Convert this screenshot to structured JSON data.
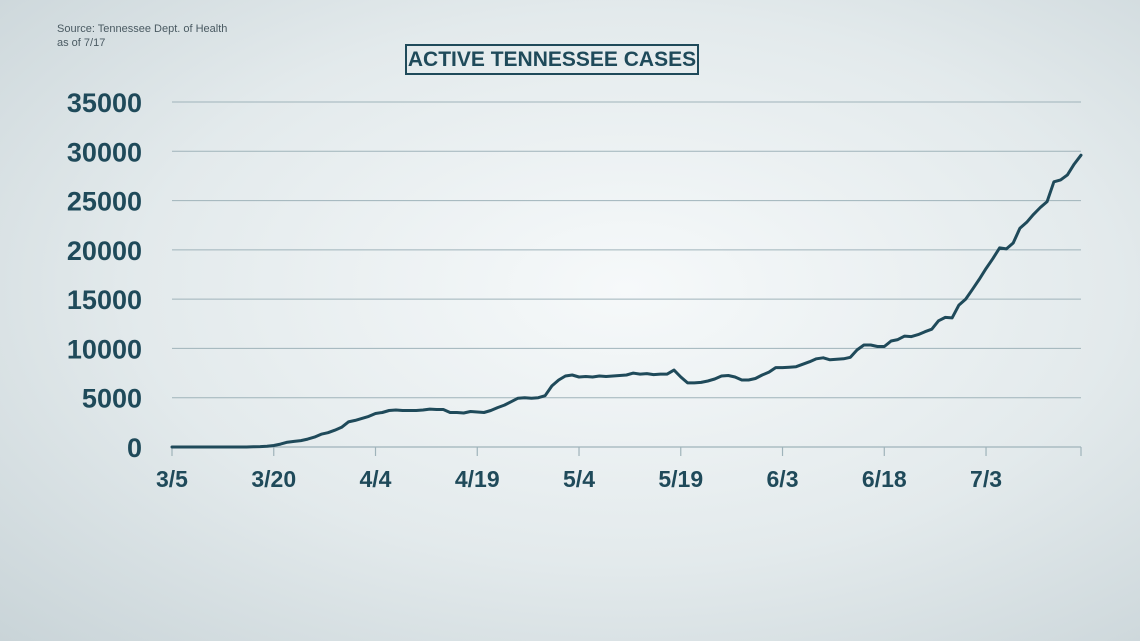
{
  "source": {
    "line1": "Source: Tennessee Dept. of Health",
    "line2": "as of 7/17"
  },
  "chart_data": {
    "type": "line",
    "title": "ACTIVE TENNESSEE CASES",
    "xlabel": "",
    "ylabel": "",
    "ylim": [
      0,
      35000
    ],
    "yticks": [
      0,
      5000,
      10000,
      15000,
      20000,
      25000,
      30000,
      35000
    ],
    "xtick_labels": [
      "3/5",
      "3/20",
      "4/4",
      "4/19",
      "5/4",
      "5/19",
      "6/3",
      "6/18",
      "7/3"
    ],
    "xtick_day_index": [
      0,
      15,
      30,
      45,
      60,
      75,
      90,
      105,
      120
    ],
    "x_range_days": [
      0,
      134
    ],
    "grid": true,
    "colors": {
      "line": "#1f4a5a",
      "grid": "#9fb3ba",
      "text": "#1f4a5a"
    },
    "series": [
      {
        "values": [
          0,
          0,
          0,
          0,
          0,
          0,
          0,
          0,
          0,
          0,
          0,
          0,
          25,
          40,
          80,
          150,
          290,
          490,
          570,
          650,
          800,
          1000,
          1300,
          1450,
          1700,
          2000,
          2550,
          2700,
          2900,
          3100,
          3400,
          3500,
          3700,
          3750,
          3700,
          3700,
          3700,
          3750,
          3850,
          3800,
          3800,
          3500,
          3500,
          3450,
          3600,
          3550,
          3500,
          3700,
          4000,
          4250,
          4600,
          4950,
          5000,
          4950,
          5000,
          5200,
          6200,
          6800,
          7200,
          7300,
          7100,
          7150,
          7100,
          7200,
          7150,
          7200,
          7250,
          7300,
          7500,
          7400,
          7450,
          7350,
          7400,
          7400,
          7800,
          7100,
          6500,
          6500,
          6550,
          6700,
          6900,
          7200,
          7250,
          7100,
          6800,
          6800,
          6950,
          7300,
          7600,
          8050,
          8050,
          8100,
          8150,
          8400,
          8650,
          8950,
          9050,
          8850,
          8900,
          8950,
          9100,
          9850,
          10350,
          10350,
          10200,
          10200,
          10750,
          10900,
          11250,
          11200,
          11400,
          11700,
          11950,
          12800,
          13150,
          13100,
          14400,
          15000,
          16000,
          17000,
          18100,
          19100,
          20200,
          20100,
          20700,
          22200,
          22800,
          23600,
          24300,
          24900,
          26900,
          27100,
          27600,
          28700,
          29600
        ]
      }
    ]
  }
}
